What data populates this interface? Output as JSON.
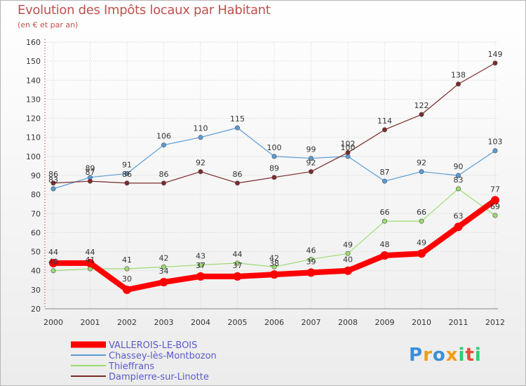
{
  "chart_data": {
    "type": "line",
    "title": "Evolution des Impôts locaux par Habitant",
    "subtitle": "(en € et par an)",
    "xlabel": "",
    "ylabel": "",
    "ylim": [
      20,
      160
    ],
    "yticks": [
      20,
      30,
      40,
      50,
      60,
      70,
      80,
      90,
      100,
      110,
      120,
      130,
      140,
      150,
      160
    ],
    "x": [
      "2000",
      "2001",
      "2002",
      "2003",
      "2004",
      "2005",
      "2006",
      "2007",
      "2008",
      "2009",
      "2010",
      "2011",
      "2012"
    ],
    "legend_position": "bottom-left",
    "series": [
      {
        "name": "Chassey-lès-Montbozon",
        "color": "#5b9bd5",
        "values": [
          83,
          89,
          91,
          106,
          110,
          115,
          100,
          99,
          100,
          87,
          92,
          90,
          103
        ]
      },
      {
        "name": "Thieffrans",
        "color": "#9bdb6f",
        "values": [
          40,
          41,
          41,
          42,
          43,
          44,
          42,
          46,
          49,
          66,
          66,
          83,
          69
        ]
      },
      {
        "name": "Dampierre-sur-Linotte",
        "color": "#7b2b2b",
        "values": [
          86,
          87,
          86,
          86,
          92,
          86,
          89,
          92,
          102,
          114,
          122,
          138,
          149
        ]
      },
      {
        "name": "VALLEROIS-LE-BOIS",
        "color": "#ff0000",
        "values": [
          44,
          44,
          30,
          34,
          37,
          37,
          38,
          39,
          40,
          48,
          49,
          63,
          77
        ]
      }
    ],
    "legend": [
      {
        "name": "VALLEROIS-LE-BOIS",
        "color": "#ff0000",
        "text_color": "#5a5ac8"
      },
      {
        "name": "Chassey-lès-Montbozon",
        "color": "#5b9bd5",
        "text_color": "#5a5ac8"
      },
      {
        "name": "Thieffrans",
        "color": "#9bdb6f",
        "text_color": "#5a5ac8"
      },
      {
        "name": "Dampierre-sur-Linotte",
        "color": "#7b2b2b",
        "text_color": "#5a5ac8"
      }
    ]
  },
  "logo": {
    "letters": [
      "P",
      "r",
      "o",
      "x",
      "i",
      "t",
      "i"
    ],
    "colors": [
      "#3a8fd8",
      "#f39c12",
      "#3a8fd8",
      "#f39c12",
      "#2ecc71",
      "#e74c3c",
      "#2ecc71"
    ]
  }
}
